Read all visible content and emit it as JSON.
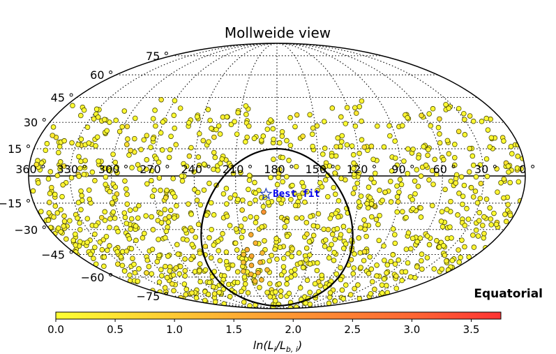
{
  "chart_data": {
    "type": "scatter",
    "title": "Mollweide view",
    "projection": "mollweide",
    "frame": "Equatorial",
    "grid": true,
    "lat_ticks": [
      {
        "value": 75,
        "label": "75 °"
      },
      {
        "value": 60,
        "label": "60 °"
      },
      {
        "value": 45,
        "label": "45 °"
      },
      {
        "value": 30,
        "label": "30 °"
      },
      {
        "value": 15,
        "label": "15 °"
      },
      {
        "value": -15,
        "label": "−15 °"
      },
      {
        "value": -30,
        "label": "−30 °"
      },
      {
        "value": -45,
        "label": "−45 °"
      },
      {
        "value": -60,
        "label": "−60 °"
      },
      {
        "value": -75,
        "label": "−75 °"
      }
    ],
    "lon_ticks": [
      {
        "value": 360,
        "label": "360 °"
      },
      {
        "value": 330,
        "label": "330 °"
      },
      {
        "value": 300,
        "label": "300 °"
      },
      {
        "value": 270,
        "label": "270 °"
      },
      {
        "value": 240,
        "label": "240 °"
      },
      {
        "value": 210,
        "label": "210 °"
      },
      {
        "value": 180,
        "label": "180 °"
      },
      {
        "value": 150,
        "label": "150 °"
      },
      {
        "value": 120,
        "label": "120 °"
      },
      {
        "value": 90,
        "label": "90 °"
      },
      {
        "value": 60,
        "label": "60 °"
      },
      {
        "value": 30,
        "label": "30 °"
      },
      {
        "value": 0,
        "label": "0 °"
      }
    ],
    "best_fit": {
      "label": "Best fit",
      "lon": 188,
      "lat": -10
    },
    "colorbar": {
      "label": "ln(L_i/L_b,i)",
      "label_display": "ln(L",
      "range": [
        0.0,
        3.75
      ],
      "ticks": [
        "0.0",
        "0.5",
        "1.0",
        "1.5",
        "2.0",
        "2.5",
        "3.0",
        "3.5"
      ],
      "tick_values": [
        0.0,
        0.5,
        1.0,
        1.5,
        2.0,
        2.5,
        3.0,
        3.5
      ],
      "colormap": [
        "#ffff33",
        "#ffd633",
        "#ffae33",
        "#ff8a33",
        "#ff6633",
        "#ff3333"
      ]
    },
    "exposure_boundary_dec": 40,
    "points": {
      "approx_count": 1200,
      "note_seed": 7
    },
    "hotspot": [
      {
        "lon": 201,
        "lat": -33,
        "value": 1.6
      },
      {
        "lon": 198,
        "lat": -38,
        "value": 1.4
      },
      {
        "lon": 206,
        "lat": -42,
        "value": 1.5
      },
      {
        "lon": 193,
        "lat": -44,
        "value": 1.3
      },
      {
        "lon": 203,
        "lat": -46,
        "value": 1.7
      },
      {
        "lon": 210,
        "lat": -45,
        "value": 1.2
      },
      {
        "lon": 196,
        "lat": -50,
        "value": 1.4
      },
      {
        "lon": 205,
        "lat": -52,
        "value": 1.6
      },
      {
        "lon": 212,
        "lat": -50,
        "value": 1.1
      },
      {
        "lon": 190,
        "lat": -55,
        "value": 1.2
      },
      {
        "lon": 200,
        "lat": -57,
        "value": 1.5
      },
      {
        "lon": 208,
        "lat": -58,
        "value": 1.3
      },
      {
        "lon": 215,
        "lat": -56,
        "value": 1.0
      },
      {
        "lon": 198,
        "lat": -62,
        "value": 1.2
      },
      {
        "lon": 206,
        "lat": -63,
        "value": 1.1
      },
      {
        "lon": 190,
        "lat": -20,
        "value": 2.1
      }
    ]
  },
  "colorbar_label_parts": {
    "prefix": "ln(L",
    "sub1": "i",
    "mid": "/L",
    "sub2": "b, i",
    "suffix": ")"
  }
}
